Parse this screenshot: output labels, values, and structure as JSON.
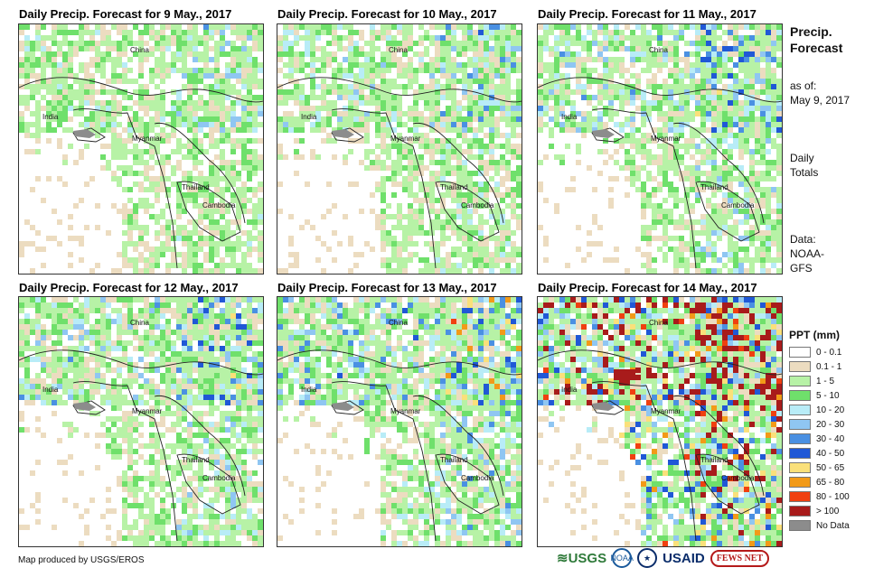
{
  "panels": [
    {
      "title": "Daily Precip. Forecast for 9 May., 2017",
      "labels": {
        "china": "China",
        "india": "India",
        "myanmar": "Myanmar",
        "thailand": "Thailand",
        "cambodia": "Cambodia"
      }
    },
    {
      "title": "Daily Precip. Forecast for 10 May., 2017",
      "labels": {
        "china": "China",
        "india": "India",
        "myanmar": "Myanmar",
        "thailand": "Thailand",
        "cambodia": "Cambodia"
      }
    },
    {
      "title": "Daily Precip. Forecast for 11 May., 2017",
      "labels": {
        "china": "China",
        "india": "India",
        "myanmar": "Myanmar",
        "thailand": "Thailand",
        "cambodia": "Cambodia"
      }
    },
    {
      "title": "Daily Precip. Forecast for 12 May., 2017",
      "labels": {
        "china": "China",
        "india": "India",
        "myanmar": "Myanmar",
        "thailand": "Thailand",
        "cambodia": "Cambodia"
      }
    },
    {
      "title": "Daily Precip. Forecast for 13 May., 2017",
      "labels": {
        "china": "China",
        "india": "India",
        "myanmar": "Myanmar",
        "thailand": "Thailand",
        "cambodia": "Cambodia"
      }
    },
    {
      "title": "Daily Precip. Forecast for 14 May., 2017",
      "labels": {
        "china": "China",
        "india": "India",
        "myanmar": "Myanmar",
        "thailand": "Thailand",
        "cambodia": "Cambodia"
      }
    }
  ],
  "sidebar": {
    "title_line1": "Precip.",
    "title_line2": "Forecast",
    "asof_line1": "as of:",
    "asof_line2": "May 9, 2017",
    "totals_line1": "Daily",
    "totals_line2": "Totals",
    "data_line1": "Data:",
    "data_line2": "NOAA-",
    "data_line3": "GFS"
  },
  "legend": {
    "title": "PPT (mm)",
    "items": [
      {
        "label": "0 - 0.1",
        "color": "#ffffff"
      },
      {
        "label": "0.1 - 1",
        "color": "#ecdcc0"
      },
      {
        "label": "1 - 5",
        "color": "#b7f2a6"
      },
      {
        "label": "5 - 10",
        "color": "#6fe06b"
      },
      {
        "label": "10 - 20",
        "color": "#b8ecf7"
      },
      {
        "label": "20 - 30",
        "color": "#8fc6f2"
      },
      {
        "label": "30 - 40",
        "color": "#4a90e2"
      },
      {
        "label": "40 - 50",
        "color": "#2058d6"
      },
      {
        "label": "50 - 65",
        "color": "#fae07a"
      },
      {
        "label": "65 - 80",
        "color": "#f29a18"
      },
      {
        "label": "80 - 100",
        "color": "#f04010"
      },
      {
        "label": "> 100",
        "color": "#a81b1b"
      },
      {
        "label": "No Data",
        "color": "#8c8c8c"
      }
    ]
  },
  "footer": {
    "credit": "Map produced by USGS/EROS"
  },
  "logos": {
    "usgs": "≋USGS",
    "noaa": "NOAA",
    "usaid": "USAID",
    "fews": "FEWS NET"
  }
}
